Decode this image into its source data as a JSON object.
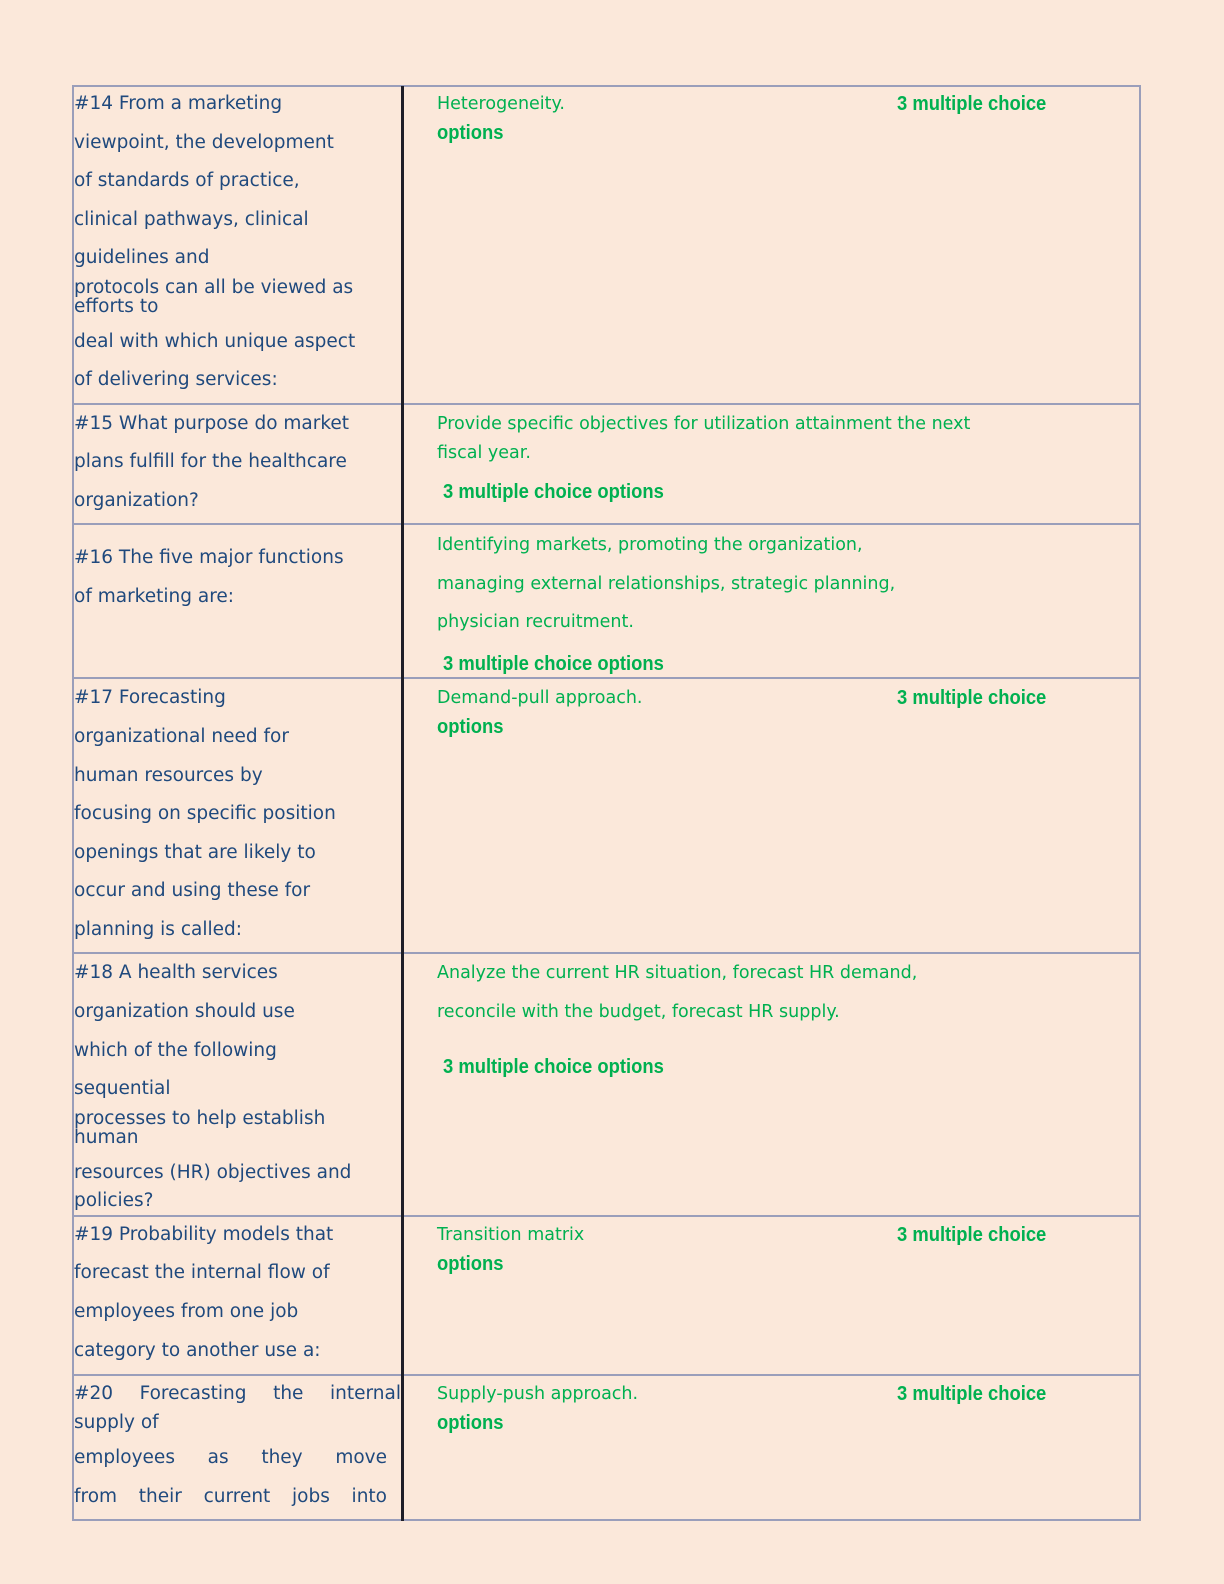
{
  "colors": {
    "background": "#fbe8da",
    "question_text": "#1f497d",
    "answer_text": "#00b050",
    "border": "#9a9eba"
  },
  "rows": [
    {
      "question_lines": [
        "#14 From a marketing",
        "viewpoint, the development",
        "of standards of practice,",
        "clinical pathways, clinical",
        "guidelines and",
        "protocols can all be viewed as",
        "efforts to",
        "deal with which unique aspect",
        "of delivering services:"
      ],
      "answer_lines": [
        "Heterogeneity."
      ],
      "mc_a": "3 multiple choice",
      "mc_b": "options"
    },
    {
      "question_lines": [
        "#15 What purpose do market",
        "plans fulfill for the healthcare",
        "organization?"
      ],
      "answer_lines": [
        "Provide specific objectives for utilization attainment the next",
        "fiscal year."
      ],
      "mc": "3 multiple choice options"
    },
    {
      "question_lines": [
        "#16 The five major functions",
        "of marketing are:"
      ],
      "answer_lines": [
        "Identifying markets, promoting the organization,",
        "managing external relationships, strategic planning,",
        "physician recruitment."
      ],
      "mc": "3 multiple choice options"
    },
    {
      "question_lines": [
        "#17 Forecasting",
        "organizational need for",
        "human resources by",
        "focusing on specific position",
        "openings that are likely to",
        "occur and using these for",
        "planning is called:"
      ],
      "answer_lines": [
        "Demand-pull approach."
      ],
      "mc_a": "3 multiple choice",
      "mc_b": "options"
    },
    {
      "question_lines": [
        "#18 A health services",
        "organization should use",
        "which of the following",
        "sequential",
        "processes to help establish",
        "human",
        "resources (HR) objectives and",
        "policies?"
      ],
      "answer_lines": [
        "Analyze the current HR situation, forecast HR demand,",
        "reconcile with the budget, forecast HR supply."
      ],
      "mc": "3 multiple choice options"
    },
    {
      "question_lines": [
        "#19 Probability models that",
        "forecast the internal flow of",
        "employees from one job",
        "category to another use a:"
      ],
      "answer_lines": [
        "Transition matrix"
      ],
      "mc_a": "3 multiple choice",
      "mc_b": "options"
    },
    {
      "question_lines": [
        "#20 Forecasting the internal",
        "supply of",
        "employees as they move",
        "from their current jobs into"
      ],
      "answer_lines": [
        "Supply-push approach."
      ],
      "mc_a": "3 multiple choice",
      "mc_b": "options"
    }
  ]
}
